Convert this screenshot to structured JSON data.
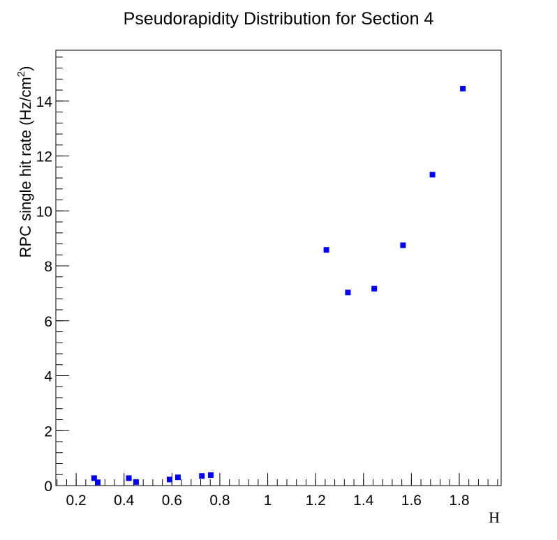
{
  "chart_data": {
    "type": "scatter",
    "title": "Pseudorapidity Distribution for Section 4",
    "xlabel": "H",
    "ylabel": "RPC single hit rate (Hz/cm",
    "ylabel_sup": "2",
    "ylabel_tail": ")",
    "xlim": [
      0.115,
      1.975
    ],
    "ylim": [
      0,
      15.85
    ],
    "x_ticks": [
      {
        "value": 0.2,
        "label": "0.2"
      },
      {
        "value": 0.4,
        "label": "0.4"
      },
      {
        "value": 0.6,
        "label": "0.6"
      },
      {
        "value": 0.8,
        "label": "0.8"
      },
      {
        "value": 1.0,
        "label": "1"
      },
      {
        "value": 1.2,
        "label": "1.2"
      },
      {
        "value": 1.4,
        "label": "1.4"
      },
      {
        "value": 1.6,
        "label": "1.6"
      },
      {
        "value": 1.8,
        "label": "1.8"
      }
    ],
    "y_ticks": [
      {
        "value": 0,
        "label": "0"
      },
      {
        "value": 2,
        "label": "2"
      },
      {
        "value": 4,
        "label": "4"
      },
      {
        "value": 6,
        "label": "6"
      },
      {
        "value": 8,
        "label": "8"
      },
      {
        "value": 10,
        "label": "10"
      },
      {
        "value": 12,
        "label": "12"
      },
      {
        "value": 14,
        "label": "14"
      }
    ],
    "x_minor_step": 0.04,
    "y_minor_step": 0.4,
    "grid": false,
    "marker_color": "#0000ff",
    "series": [
      {
        "x": [
          0.275,
          0.29,
          0.42,
          0.45,
          0.59,
          0.625,
          0.725,
          0.762,
          1.245,
          1.335,
          1.445,
          1.565,
          1.688,
          1.815
        ],
        "y": [
          0.27,
          0.12,
          0.27,
          0.13,
          0.22,
          0.3,
          0.35,
          0.38,
          8.58,
          7.03,
          7.17,
          8.75,
          11.32,
          14.45
        ]
      }
    ]
  }
}
